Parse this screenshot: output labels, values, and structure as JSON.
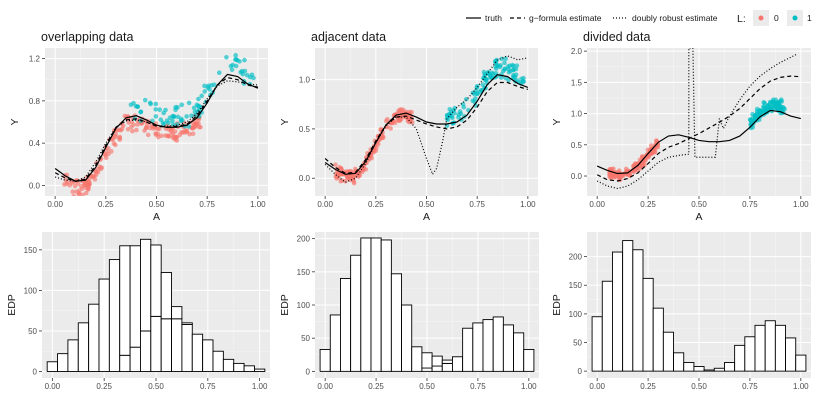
{
  "colors": {
    "panel_bg": "#EBEBEB",
    "grid_major": "#FFFFFF",
    "group_0": "#F8766D",
    "group_1": "#00BFC4",
    "line": "#000000",
    "bar_fill": "#FFFFFF",
    "bar_stroke": "#000000"
  },
  "legend": {
    "line_items": [
      {
        "label": "truth",
        "style": "solid"
      },
      {
        "label": "g−formula estimate",
        "style": "dashed"
      },
      {
        "label": "doubly robust estimate",
        "style": "dotted"
      }
    ],
    "group_title": "L:",
    "group_items": [
      {
        "label": "0",
        "color": "#F8766D"
      },
      {
        "label": "1",
        "color": "#00BFC4"
      }
    ]
  },
  "chart_data": [
    {
      "id": "scatter-overlapping",
      "type": "scatter",
      "title": "overlapping data",
      "xlabel": "A",
      "ylabel": "Y",
      "xlim": [
        -0.05,
        1.05
      ],
      "ylim": [
        -0.1,
        1.3
      ],
      "xticks": [
        0.0,
        0.25,
        0.5,
        0.75,
        1.0
      ],
      "xtick_labels": [
        "0.00",
        "0.25",
        "0.50",
        "0.75",
        "1.00"
      ],
      "yticks": [
        0.0,
        0.4,
        0.8,
        1.2
      ],
      "ytick_labels": [
        "0.0",
        "0.4",
        "0.8",
        "1.2"
      ],
      "point_clusters": [
        {
          "group": "0",
          "x": [
            0.04,
            0.72
          ],
          "y_offset": [
            -0.16,
            0.05
          ],
          "n": 190
        },
        {
          "group": "1",
          "x": [
            0.36,
            0.98
          ],
          "y_offset": [
            -0.04,
            0.22
          ],
          "n": 90
        }
      ],
      "series": [
        {
          "name": "truth",
          "style": "solid",
          "x": [
            0.0,
            0.05,
            0.1,
            0.15,
            0.2,
            0.25,
            0.3,
            0.35,
            0.4,
            0.45,
            0.5,
            0.55,
            0.6,
            0.65,
            0.7,
            0.75,
            0.8,
            0.85,
            0.9,
            0.95,
            1.0
          ],
          "y": [
            0.16,
            0.09,
            0.04,
            0.05,
            0.17,
            0.36,
            0.54,
            0.64,
            0.66,
            0.62,
            0.57,
            0.55,
            0.55,
            0.57,
            0.64,
            0.78,
            0.95,
            1.05,
            1.03,
            0.96,
            0.92
          ]
        },
        {
          "name": "g-formula estimate",
          "style": "dashed",
          "x": [
            0.0,
            0.05,
            0.1,
            0.15,
            0.2,
            0.25,
            0.3,
            0.35,
            0.4,
            0.45,
            0.5,
            0.55,
            0.6,
            0.65,
            0.7,
            0.75,
            0.8,
            0.85,
            0.9,
            0.95,
            1.0
          ],
          "y": [
            0.12,
            0.07,
            0.04,
            0.06,
            0.19,
            0.38,
            0.55,
            0.62,
            0.63,
            0.6,
            0.56,
            0.55,
            0.56,
            0.58,
            0.66,
            0.8,
            0.95,
            1.02,
            1.0,
            0.95,
            0.93
          ]
        },
        {
          "name": "doubly robust estimate",
          "style": "dotted",
          "x": [
            0.0,
            0.05,
            0.1,
            0.15,
            0.2,
            0.25,
            0.3,
            0.35,
            0.4,
            0.45,
            0.5,
            0.55,
            0.6,
            0.65,
            0.7,
            0.75,
            0.8,
            0.85,
            0.9,
            0.95,
            1.0
          ],
          "y": [
            0.08,
            0.05,
            0.04,
            0.08,
            0.22,
            0.4,
            0.55,
            0.61,
            0.62,
            0.6,
            0.57,
            0.56,
            0.57,
            0.6,
            0.68,
            0.82,
            0.94,
            0.99,
            0.98,
            0.96,
            0.95
          ]
        }
      ]
    },
    {
      "id": "scatter-adjacent",
      "type": "scatter",
      "title": "adjacent data",
      "xlabel": "A",
      "ylabel": "Y",
      "xlim": [
        -0.05,
        1.05
      ],
      "ylim": [
        -0.18,
        1.32
      ],
      "xticks": [
        0.0,
        0.25,
        0.5,
        0.75,
        1.0
      ],
      "xtick_labels": [
        "0.00",
        "0.25",
        "0.50",
        "0.75",
        "1.00"
      ],
      "yticks": [
        0.0,
        0.5,
        1.0
      ],
      "ytick_labels": [
        "0.0",
        "0.5",
        "1.0"
      ],
      "point_clusters": [
        {
          "group": "0",
          "x": [
            0.05,
            0.43
          ],
          "y_offset": [
            -0.1,
            0.06
          ],
          "n": 190
        },
        {
          "group": "1",
          "x": [
            0.6,
            0.98
          ],
          "y_offset": [
            -0.04,
            0.2
          ],
          "n": 110
        }
      ],
      "series": [
        {
          "name": "truth",
          "style": "solid",
          "x": [
            0.0,
            0.05,
            0.1,
            0.15,
            0.2,
            0.25,
            0.3,
            0.35,
            0.4,
            0.45,
            0.5,
            0.55,
            0.6,
            0.65,
            0.7,
            0.75,
            0.8,
            0.85,
            0.9,
            0.95,
            1.0
          ],
          "y": [
            0.16,
            0.09,
            0.04,
            0.05,
            0.17,
            0.36,
            0.54,
            0.64,
            0.66,
            0.62,
            0.57,
            0.55,
            0.55,
            0.57,
            0.64,
            0.78,
            0.95,
            1.05,
            1.03,
            0.96,
            0.92
          ]
        },
        {
          "name": "g-formula estimate",
          "style": "dashed",
          "x": [
            0.0,
            0.05,
            0.1,
            0.15,
            0.2,
            0.25,
            0.3,
            0.35,
            0.4,
            0.45,
            0.5,
            0.55,
            0.6,
            0.65,
            0.7,
            0.75,
            0.8,
            0.85,
            0.9,
            0.95,
            1.0
          ],
          "y": [
            0.2,
            0.11,
            0.05,
            0.06,
            0.19,
            0.38,
            0.54,
            0.62,
            0.63,
            0.59,
            0.55,
            0.52,
            0.5,
            0.52,
            0.59,
            0.72,
            0.88,
            0.97,
            0.97,
            0.93,
            0.9
          ]
        },
        {
          "name": "doubly robust estimate",
          "style": "dotted",
          "x": [
            0.0,
            0.05,
            0.1,
            0.15,
            0.2,
            0.25,
            0.3,
            0.35,
            0.4,
            0.45,
            0.5,
            0.53,
            0.55,
            0.58,
            0.6,
            0.65,
            0.7,
            0.75,
            0.8,
            0.85,
            0.9,
            0.95,
            1.0
          ],
          "y": [
            0.14,
            0.04,
            -0.04,
            0.0,
            0.15,
            0.36,
            0.53,
            0.62,
            0.62,
            0.5,
            0.2,
            0.04,
            0.1,
            0.38,
            0.6,
            0.72,
            0.8,
            0.92,
            1.06,
            1.2,
            1.24,
            1.2,
            1.22
          ]
        }
      ]
    },
    {
      "id": "scatter-divided",
      "type": "scatter",
      "title": "divided data",
      "xlabel": "A",
      "ylabel": "Y",
      "xlim": [
        -0.05,
        1.05
      ],
      "ylim": [
        -0.32,
        2.05
      ],
      "xticks": [
        0.0,
        0.25,
        0.5,
        0.75,
        1.0
      ],
      "xtick_labels": [
        "0.00",
        "0.25",
        "0.50",
        "0.75",
        "1.00"
      ],
      "yticks": [
        0.0,
        0.5,
        1.0,
        1.5,
        2.0
      ],
      "ytick_labels": [
        "0.0",
        "0.5",
        "1.0",
        "1.5",
        "2.0"
      ],
      "point_clusters": [
        {
          "group": "0",
          "x": [
            0.06,
            0.3
          ],
          "y_offset": [
            -0.12,
            0.08
          ],
          "n": 180
        },
        {
          "group": "1",
          "x": [
            0.75,
            0.92
          ],
          "y_offset": [
            -0.06,
            0.22
          ],
          "n": 110
        }
      ],
      "series": [
        {
          "name": "truth",
          "style": "solid",
          "x": [
            0.0,
            0.05,
            0.1,
            0.15,
            0.2,
            0.25,
            0.3,
            0.35,
            0.4,
            0.45,
            0.5,
            0.55,
            0.6,
            0.65,
            0.7,
            0.75,
            0.8,
            0.85,
            0.9,
            0.95,
            1.0
          ],
          "y": [
            0.16,
            0.09,
            0.04,
            0.05,
            0.17,
            0.36,
            0.54,
            0.64,
            0.66,
            0.62,
            0.57,
            0.55,
            0.55,
            0.57,
            0.64,
            0.78,
            0.95,
            1.05,
            1.03,
            0.96,
            0.92
          ]
        },
        {
          "name": "g-formula estimate",
          "style": "dashed",
          "x": [
            0.0,
            0.05,
            0.1,
            0.15,
            0.2,
            0.25,
            0.3,
            0.35,
            0.4,
            0.45,
            0.5,
            0.55,
            0.6,
            0.65,
            0.7,
            0.75,
            0.8,
            0.85,
            0.9,
            0.95,
            1.0
          ],
          "y": [
            0.02,
            -0.06,
            -0.08,
            -0.04,
            0.05,
            0.2,
            0.36,
            0.46,
            0.52,
            0.6,
            0.68,
            0.77,
            0.86,
            0.96,
            1.08,
            1.24,
            1.4,
            1.52,
            1.58,
            1.6,
            1.59
          ]
        },
        {
          "name": "doubly robust estimate",
          "style": "dotted",
          "x": [
            0.0,
            0.05,
            0.1,
            0.15,
            0.2,
            0.25,
            0.3,
            0.35,
            0.4,
            0.45,
            0.45,
            0.47,
            0.48,
            0.58,
            0.6,
            0.62,
            0.65,
            0.7,
            0.75,
            0.8,
            0.85,
            0.9,
            0.95,
            0.98
          ],
          "y": [
            -0.08,
            -0.16,
            -0.2,
            -0.16,
            -0.06,
            0.08,
            0.22,
            0.3,
            0.33,
            0.35,
            2.05,
            2.05,
            0.3,
            0.3,
            0.92,
            0.76,
            0.96,
            1.22,
            1.44,
            1.6,
            1.72,
            1.82,
            1.9,
            1.95
          ]
        }
      ]
    },
    {
      "id": "hist-overlapping",
      "type": "bar",
      "ylabel": "EDP",
      "xlim": [
        -0.05,
        1.05
      ],
      "ylim": [
        -8,
        172
      ],
      "xticks": [
        0.0,
        0.25,
        0.5,
        0.75,
        1.0
      ],
      "xtick_labels": [
        "0.00",
        "0.25",
        "0.50",
        "0.75",
        "1.00"
      ],
      "yticks": [
        0,
        50,
        100,
        150
      ],
      "ytick_labels": [
        "0",
        "50",
        "100",
        "150"
      ],
      "bin_width": 0.05,
      "categories": [
        0.0,
        0.05,
        0.1,
        0.15,
        0.2,
        0.25,
        0.3,
        0.35,
        0.4,
        0.45,
        0.5,
        0.55,
        0.6,
        0.65,
        0.7,
        0.75,
        0.8,
        0.85,
        0.9,
        0.95,
        1.0
      ],
      "series": [
        {
          "name": "L=1",
          "values": [
            0,
            0,
            0,
            0,
            0,
            0,
            0,
            20,
            30,
            50,
            68,
            65,
            65,
            58,
            46,
            39,
            25,
            15,
            10,
            7,
            3
          ]
        },
        {
          "name": "L=0",
          "values": [
            12,
            22,
            39,
            60,
            83,
            114,
            138,
            135,
            125,
            113,
            88,
            57,
            15,
            2,
            0,
            0,
            0,
            0,
            0,
            0,
            0
          ]
        }
      ],
      "values": [
        12,
        22,
        39,
        60,
        83,
        114,
        138,
        155,
        155,
        163,
        156,
        122,
        80,
        60,
        46,
        39,
        25,
        15,
        10,
        7,
        3
      ]
    },
    {
      "id": "hist-adjacent",
      "type": "bar",
      "ylabel": "EDP",
      "xlim": [
        -0.05,
        1.05
      ],
      "ylim": [
        -10,
        210
      ],
      "xticks": [
        0.0,
        0.25,
        0.5,
        0.75,
        1.0
      ],
      "xtick_labels": [
        "0.00",
        "0.25",
        "0.50",
        "0.75",
        "1.00"
      ],
      "yticks": [
        0,
        50,
        100,
        150,
        200
      ],
      "ytick_labels": [
        "0",
        "50",
        "100",
        "150",
        "200"
      ],
      "bin_width": 0.05,
      "categories": [
        0.0,
        0.05,
        0.1,
        0.15,
        0.2,
        0.25,
        0.3,
        0.35,
        0.4,
        0.45,
        0.5,
        0.55,
        0.6,
        0.65,
        0.7,
        0.75,
        0.8,
        0.85,
        0.9,
        0.95,
        1.0
      ],
      "series": [
        {
          "name": "L=1",
          "values": [
            0,
            0,
            0,
            0,
            0,
            0,
            0,
            0,
            0,
            0,
            5,
            8,
            12,
            22,
            65,
            73,
            78,
            82,
            70,
            58,
            33
          ]
        },
        {
          "name": "L=0",
          "values": [
            33,
            85,
            140,
            175,
            201,
            201,
            198,
            147,
            100,
            37,
            23,
            15,
            5,
            0,
            0,
            0,
            0,
            0,
            0,
            0,
            0
          ]
        }
      ],
      "values": [
        33,
        85,
        140,
        175,
        201,
        201,
        198,
        147,
        100,
        37,
        28,
        23,
        17,
        22,
        65,
        73,
        78,
        82,
        70,
        58,
        33
      ]
    },
    {
      "id": "hist-divided",
      "type": "bar",
      "ylabel": "EDP",
      "xlim": [
        -0.05,
        1.05
      ],
      "ylim": [
        -12,
        243
      ],
      "xticks": [
        0.0,
        0.25,
        0.5,
        0.75,
        1.0
      ],
      "xtick_labels": [
        "0.00",
        "0.25",
        "0.50",
        "0.75",
        "1.00"
      ],
      "yticks": [
        0,
        50,
        100,
        150,
        200
      ],
      "ytick_labels": [
        "0",
        "50",
        "100",
        "150",
        "200"
      ],
      "bin_width": 0.05,
      "categories": [
        0.0,
        0.05,
        0.1,
        0.15,
        0.2,
        0.25,
        0.3,
        0.35,
        0.4,
        0.45,
        0.5,
        0.55,
        0.6,
        0.65,
        0.7,
        0.75,
        0.8,
        0.85,
        0.9,
        0.95,
        1.0
      ],
      "series": [
        {
          "name": "L=1",
          "values": [
            0,
            0,
            0,
            0,
            0,
            0,
            0,
            0,
            0,
            0,
            0,
            0,
            5,
            15,
            45,
            60,
            80,
            88,
            80,
            58,
            28
          ]
        },
        {
          "name": "L=0",
          "values": [
            95,
            157,
            208,
            228,
            212,
            162,
            110,
            68,
            32,
            15,
            8,
            2,
            0,
            0,
            0,
            0,
            0,
            0,
            0,
            0,
            0
          ]
        }
      ],
      "values": [
        95,
        157,
        208,
        228,
        212,
        162,
        110,
        68,
        32,
        15,
        8,
        2,
        5,
        15,
        45,
        60,
        80,
        88,
        80,
        58,
        28
      ]
    }
  ]
}
